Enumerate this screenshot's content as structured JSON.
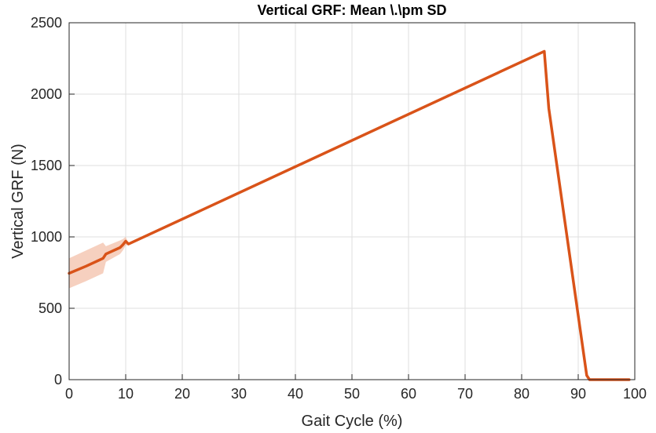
{
  "chart_data": {
    "type": "line",
    "title": "Vertical GRF: Mean \\.\\pm SD",
    "xlabel": "Gait Cycle (%)",
    "ylabel": "Vertical GRF (N)",
    "xlim": [
      0,
      100
    ],
    "ylim": [
      0,
      2500
    ],
    "xticks": [
      0,
      10,
      20,
      30,
      40,
      50,
      60,
      70,
      80,
      90,
      100
    ],
    "yticks": [
      0,
      500,
      1000,
      1500,
      2000,
      2500
    ],
    "grid": true,
    "series": [
      {
        "color": "#D95319",
        "x": [
          0,
          3,
          6,
          6.5,
          9,
          9.5,
          10,
          10.5,
          84,
          84.8,
          91.5,
          92,
          99
        ],
        "y": [
          745,
          795,
          850,
          880,
          925,
          945,
          970,
          950,
          2300,
          1900,
          30,
          0,
          0
        ]
      }
    ],
    "band": {
      "color": "#F4C4AF",
      "x": [
        0,
        3,
        6,
        6.5,
        9,
        9.5,
        10,
        10.5
      ],
      "upper": [
        850,
        905,
        960,
        935,
        975,
        985,
        1000,
        955
      ],
      "lower": [
        640,
        690,
        745,
        825,
        880,
        905,
        940,
        945
      ]
    }
  }
}
